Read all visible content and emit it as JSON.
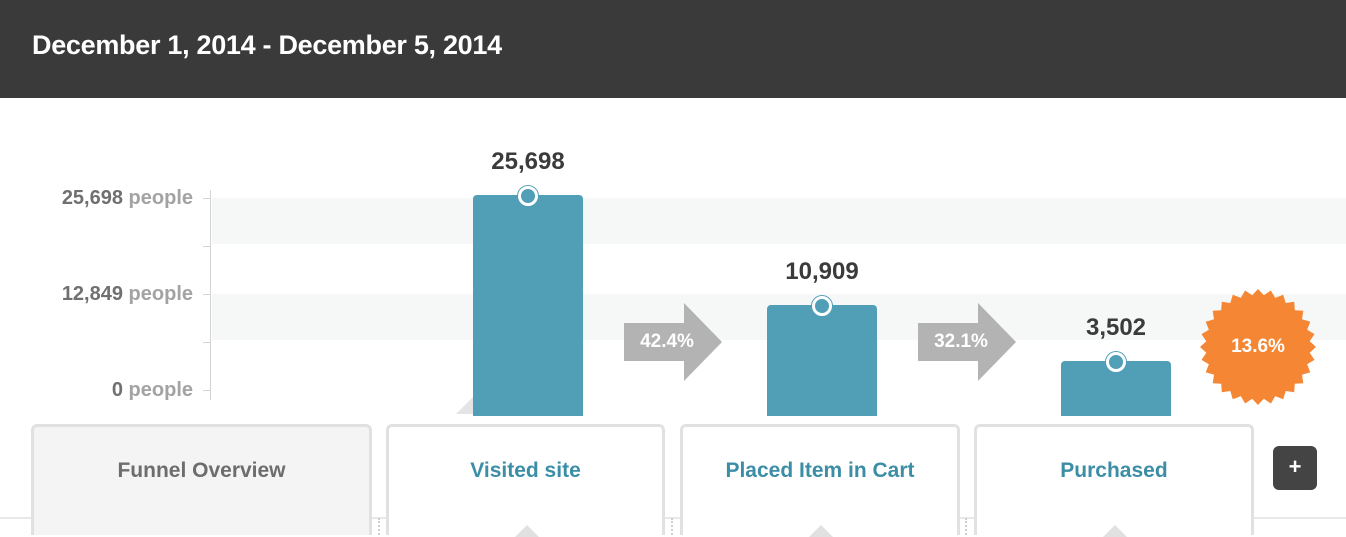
{
  "header": {
    "title": "December 1, 2014 - December 5, 2014"
  },
  "chart_data": {
    "type": "bar",
    "title": "",
    "categories": [
      "Visited site",
      "Placed Item in Cart",
      "Purchased"
    ],
    "values": [
      25698,
      10909,
      3502
    ],
    "value_labels": [
      "25,698",
      "10,909",
      "3,502"
    ],
    "ylim": [
      0,
      25698
    ],
    "y_ticks": [
      {
        "value": 25698,
        "number": "25,698",
        "unit": "people"
      },
      {
        "value": 12849,
        "number": "12,849",
        "unit": "people"
      },
      {
        "value": 0,
        "number": "0",
        "unit": "people"
      }
    ],
    "conversion_rates": [
      "42.4%",
      "32.1%"
    ],
    "overall_conversion": "13.6%",
    "bar_color": "#509fb6",
    "badge_color": "#f58634",
    "arrow_color": "#b3b3b3",
    "grid": true
  },
  "tabs": {
    "overview": "Funnel Overview",
    "steps": [
      "Visited site",
      "Placed Item in Cart",
      "Purchased"
    ]
  },
  "add_button": {
    "label": "+"
  }
}
